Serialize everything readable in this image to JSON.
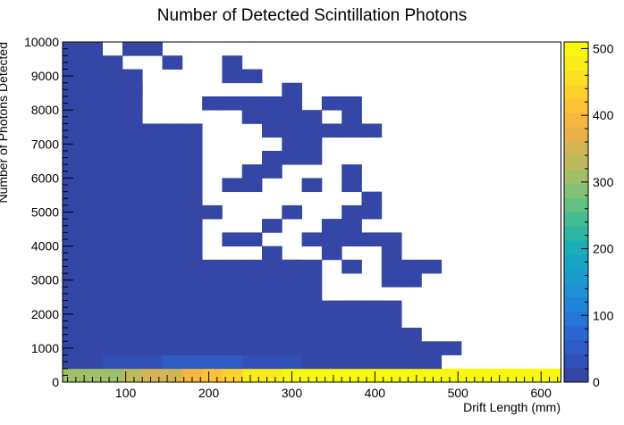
{
  "chart_data": {
    "type": "heatmap",
    "title": "Number of Detected Scintillation Photons",
    "xlabel": "Drift Length (mm)",
    "ylabel": "Number of Photons Detected",
    "xlim": [
      24,
      624
    ],
    "ylim": [
      0,
      10000
    ],
    "x_bin_width": 24,
    "y_bin_width": 400,
    "x_ticks": [
      100,
      200,
      300,
      400,
      500,
      600
    ],
    "x_tick_labels": [
      "100",
      "200",
      "300",
      "400",
      "500",
      "600"
    ],
    "y_ticks": [
      0,
      1000,
      2000,
      3000,
      4000,
      5000,
      6000,
      7000,
      8000,
      9000,
      10000
    ],
    "y_tick_labels": [
      "0",
      "1000",
      "2000",
      "3000",
      "4000",
      "5000",
      "6000",
      "7000",
      "8000",
      "9000",
      "10000"
    ],
    "colorbar": {
      "range": [
        0,
        510
      ],
      "ticks": [
        0,
        100,
        200,
        300,
        400,
        500
      ],
      "tick_labels": [
        "0",
        "100",
        "200",
        "300",
        "400",
        "500"
      ]
    },
    "bottom_row_counts": [
      300,
      300,
      310,
      320,
      340,
      360,
      400,
      420,
      440,
      480,
      480,
      490,
      500,
      500,
      505,
      505,
      505,
      505,
      505,
      505,
      505,
      505,
      505,
      505,
      505
    ],
    "second_row_counts": [
      10,
      15,
      25,
      35,
      40,
      45,
      50,
      55,
      50,
      40,
      35,
      30,
      20,
      15,
      10,
      10,
      10,
      5,
      5,
      0,
      0,
      0,
      0,
      0,
      0
    ],
    "third_row_counts": [
      5,
      5,
      10,
      20,
      20,
      20,
      15,
      10,
      5,
      5,
      5,
      5,
      5,
      5,
      5,
      5,
      5,
      5,
      5,
      5,
      0,
      0,
      0,
      0,
      0
    ],
    "occupied_low_count_bins": [
      [
        0,
        "....................xx..."
      ],
      [
        0,
        "................x..x..x.."
      ],
      [
        0,
        "...............xx.....x.."
      ],
      [
        0,
        ".............x.......x..."
      ],
      [
        0,
        "..........xx.xxxxx......."
      ],
      [
        0,
        "..........x.xxxx........."
      ],
      [
        0,
        ".........xxxxxx.........."
      ],
      [
        0,
        "............xx..........."
      ],
      [
        0,
        "............xxx....x....."
      ],
      [
        0,
        "..........x...xx........."
      ],
      [
        0,
        "..........x.x..xx........"
      ],
      [
        0,
        ".........x..............."
      ],
      [
        0,
        ".........xx..x...x.x....."
      ],
      [
        0,
        "..........xx..x....x....."
      ],
      [
        0,
        "........xxxxx..xx........"
      ],
      [
        0,
        "........x..x..x.......x.."
      ],
      [
        0,
        ".......xxx.x..x..........."
      ],
      [
        0,
        ".......xx.....xx..x......"
      ],
      [
        0,
        "..............xxx.x......"
      ],
      [
        0,
        ".........xx.x.xxx.x..x..."
      ],
      [
        0,
        ".........x.x..xxx.x..x..."
      ],
      [
        0,
        ".......xx..x..x.....x...."
      ],
      [
        0,
        ".........x.x..x....x....."
      ]
    ]
  }
}
